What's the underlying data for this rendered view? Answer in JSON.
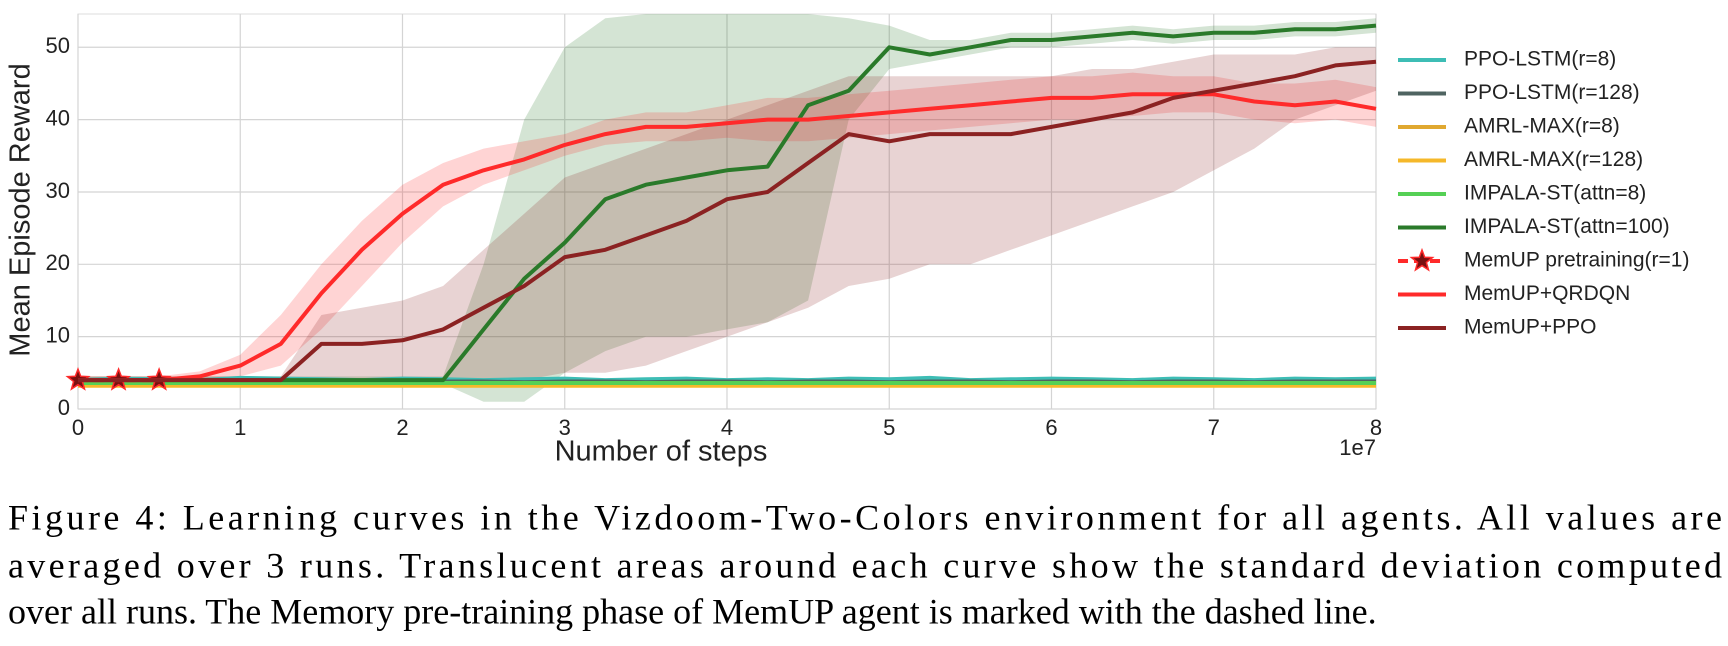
{
  "chart_data": {
    "type": "line",
    "xlabel": "Number of steps",
    "ylabel": "Mean Episode Reward",
    "x_offset_label": "1e7",
    "xlim": [
      0,
      8
    ],
    "xticks": [
      0,
      1,
      2,
      3,
      4,
      5,
      6,
      7,
      8
    ],
    "ylim": [
      0,
      54.6
    ],
    "yticks": [
      0,
      10,
      20,
      30,
      40,
      50
    ],
    "grid": true,
    "legend": "right",
    "x": [
      0,
      0.25,
      0.5,
      0.75,
      1,
      1.25,
      1.5,
      1.75,
      2,
      2.25,
      2.5,
      2.75,
      3,
      3.25,
      3.5,
      3.75,
      4,
      4.25,
      4.5,
      4.75,
      5,
      5.25,
      5.5,
      5.75,
      6,
      6.25,
      6.5,
      6.75,
      7,
      7.25,
      7.5,
      7.75,
      8
    ],
    "series": [
      {
        "name": "PPO-LSTM(r=8)",
        "color": "#3dbdb5",
        "values": [
          4,
          4.2,
          4.1,
          4,
          4.3,
          4.2,
          4.1,
          4,
          4.2,
          4.1,
          4,
          4.1,
          4.2,
          4,
          4.1,
          4.2,
          4,
          4.1,
          4,
          4.2,
          4.1,
          4.3,
          4,
          4.1,
          4.2,
          4.1,
          4,
          4.2,
          4.1,
          4,
          4.2,
          4.1,
          4.2
        ]
      },
      {
        "name": "PPO-LSTM(r=128)",
        "color": "#4f6461",
        "values": [
          3.8,
          3.8,
          3.7,
          3.8,
          3.8,
          3.7,
          3.8,
          3.8,
          3.7,
          3.8,
          3.8,
          3.7,
          3.8,
          3.8,
          3.7,
          3.8,
          3.8,
          3.7,
          3.8,
          3.8,
          3.7,
          3.8,
          3.8,
          3.7,
          3.8,
          3.8,
          3.7,
          3.8,
          3.8,
          3.7,
          3.8,
          3.8,
          3.8
        ]
      },
      {
        "name": "AMRL-MAX(r=8)",
        "color": "#e0a830",
        "values": [
          3.4,
          3.4,
          3.4,
          3.4,
          3.4,
          3.4,
          3.4,
          3.4,
          3.4,
          3.4,
          3.4,
          3.4,
          3.4,
          3.4,
          3.4,
          3.4,
          3.4,
          3.4,
          3.4,
          3.4,
          3.4,
          3.4,
          3.4,
          3.4,
          3.4,
          3.4,
          3.4,
          3.4,
          3.4,
          3.4,
          3.4,
          3.4,
          3.4
        ]
      },
      {
        "name": "AMRL-MAX(r=128)",
        "color": "#f5b82a",
        "values": [
          3.2,
          3.2,
          3.2,
          3.2,
          3.2,
          3.2,
          3.2,
          3.2,
          3.2,
          3.2,
          3.2,
          3.2,
          3.2,
          3.2,
          3.2,
          3.2,
          3.2,
          3.2,
          3.2,
          3.2,
          3.2,
          3.2,
          3.2,
          3.2,
          3.2,
          3.2,
          3.2,
          3.2,
          3.2,
          3.2,
          3.2,
          3.2,
          3.2
        ]
      },
      {
        "name": "IMPALA-ST(attn=8)",
        "color": "#55d055",
        "values": [
          3.6,
          3.6,
          3.6,
          3.6,
          3.6,
          3.6,
          3.6,
          3.6,
          3.6,
          3.6,
          3.6,
          3.6,
          3.6,
          3.6,
          3.6,
          3.6,
          3.6,
          3.6,
          3.6,
          3.6,
          3.6,
          3.6,
          3.6,
          3.6,
          3.6,
          3.6,
          3.6,
          3.6,
          3.6,
          3.6,
          3.6,
          3.6,
          3.6
        ]
      },
      {
        "name": "IMPALA-ST(attn=100)",
        "color": "#2a7a2a",
        "values": [
          4,
          4,
          4,
          4,
          4,
          4,
          4,
          4,
          4,
          4,
          11,
          18,
          23,
          29,
          31,
          32,
          33,
          33.5,
          42,
          44,
          50,
          49,
          50,
          51,
          51,
          51.5,
          52,
          51.5,
          52,
          52,
          52.5,
          52.5,
          53
        ],
        "lower": [
          3.5,
          3.5,
          3.5,
          3.5,
          3.5,
          3.5,
          3.5,
          3.5,
          3.5,
          3.5,
          1,
          1,
          5,
          8,
          10,
          10,
          11,
          12,
          15,
          40,
          47,
          48,
          49,
          50,
          50,
          50.5,
          51,
          50.5,
          51,
          51,
          51.5,
          51.5,
          52
        ],
        "upper": [
          4.5,
          4.5,
          4.5,
          4.5,
          4.5,
          4.5,
          4.5,
          4.5,
          4.5,
          4.5,
          20,
          40,
          50,
          54,
          54.6,
          54.6,
          54.6,
          54.6,
          54.6,
          54,
          53,
          51,
          51,
          52,
          52,
          52.5,
          53,
          52.5,
          53,
          53,
          53.5,
          53.5,
          54
        ]
      },
      {
        "name": "MemUP pretraining(r=1)",
        "color": "#ff2a2a",
        "dashed": true,
        "marker": "star",
        "marker_color": "#7a1010",
        "x": [
          0,
          0.25,
          0.5
        ],
        "values": [
          4,
          4,
          4
        ]
      },
      {
        "name": "MemUP+QRDQN",
        "color": "#ff2a2a",
        "values": [
          4,
          4,
          4,
          4.5,
          6,
          9,
          16,
          22,
          27,
          31,
          33,
          34.5,
          36.5,
          38,
          39,
          39,
          39.5,
          40,
          40,
          40.5,
          41,
          41.5,
          42,
          42.5,
          43,
          43,
          43.5,
          43.5,
          43.5,
          42.5,
          42,
          42.5,
          41.5
        ],
        "lower": [
          3.5,
          3.5,
          3.5,
          3.8,
          4.5,
          6,
          11,
          17,
          23,
          28,
          31,
          33,
          35,
          36.5,
          37,
          37,
          37.5,
          37,
          37,
          37.5,
          38,
          38.5,
          39,
          39.5,
          40,
          40,
          40.5,
          41,
          41,
          40,
          39.5,
          40,
          39
        ],
        "upper": [
          4.5,
          4.5,
          4.5,
          5.2,
          7.5,
          13,
          20,
          26,
          31,
          34,
          36,
          37,
          38,
          40,
          41,
          41,
          42,
          43,
          43,
          43.5,
          44,
          44.5,
          45,
          45.5,
          46,
          46,
          46.5,
          46,
          46,
          45,
          45,
          45.5,
          44.5
        ]
      },
      {
        "name": "MemUP+PPO",
        "color": "#8b2222",
        "values": [
          4,
          4,
          4,
          4,
          4,
          4,
          9,
          9,
          9.5,
          11,
          14,
          17,
          21,
          22,
          24,
          26,
          29,
          30,
          34,
          38,
          37,
          38,
          38,
          38,
          39,
          40,
          41,
          43,
          44,
          45,
          46,
          47.5,
          48
        ],
        "lower": [
          3.5,
          3.5,
          3.5,
          3.5,
          3.5,
          3.5,
          4,
          4,
          4,
          4,
          4,
          4,
          5,
          5,
          6,
          8,
          10,
          12,
          14,
          17,
          18,
          20,
          20,
          22,
          24,
          26,
          28,
          30,
          33,
          36,
          40,
          42,
          44
        ],
        "upper": [
          4.5,
          4.5,
          4.5,
          4.5,
          4.5,
          4.5,
          13,
          14,
          15,
          17,
          22,
          27,
          32,
          34,
          36,
          38,
          40,
          42,
          44,
          46,
          46,
          46,
          46,
          46,
          46,
          47,
          47,
          48,
          49,
          49,
          49,
          50,
          50
        ]
      }
    ]
  },
  "caption": [
    "Figure 4: Learning curves in the Vizdoom-Two-Colors environment for all agents. All values are",
    "averaged over 3 runs. Translucent areas around each curve show the standard deviation computed",
    "over all runs. The Memory pre-training phase of MemUP agent is marked with the dashed line."
  ]
}
